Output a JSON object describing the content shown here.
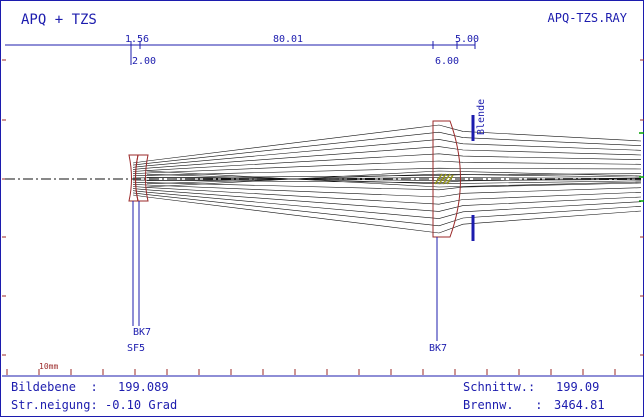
{
  "window": {
    "title_left": "APQ + TZS",
    "title_right": "APQ-TZS.RAY"
  },
  "dimensions": {
    "top": [
      "1.56",
      "80.01",
      "5.00"
    ],
    "bottom": [
      "2.00",
      "6.00"
    ]
  },
  "labels": {
    "stop": "Blende",
    "glass_bk7_first": "BK7",
    "glass_sf5": "SF5",
    "glass_bk7_second": "BK7",
    "scale": "10mm"
  },
  "footer": {
    "image_plane_label": "Bildebene  :",
    "image_plane_value": "199.089",
    "ray_tilt_label": "Str.neigung:",
    "ray_tilt_value": "-0.10 Grad",
    "back_focus_label": "Schnittw.:",
    "back_focus_value": "199.09",
    "focal_length_label": "Brennw.   :",
    "focal_length_value": "3464.81"
  },
  "colors": {
    "text": "#1c1cae",
    "lens": "#9b2a2a",
    "rays": "#111111",
    "frame": "#1c1cae",
    "ticks": "#9b2a2a",
    "stop": "#1c1cae",
    "accent": "#00a000"
  }
}
